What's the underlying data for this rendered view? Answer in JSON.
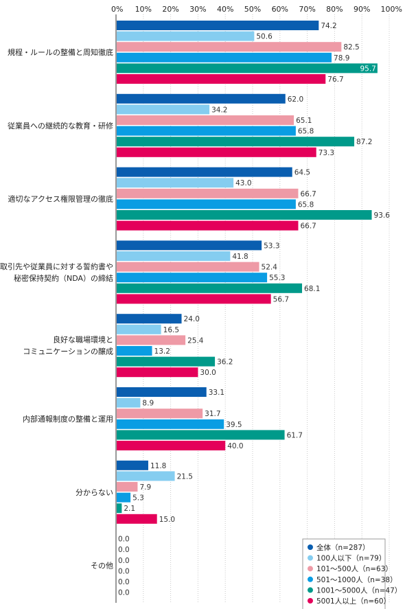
{
  "chart_data": {
    "type": "bar",
    "orientation": "horizontal",
    "xlim": [
      0,
      100
    ],
    "x_ticks": [
      "0%",
      "10%",
      "20%",
      "30%",
      "40%",
      "50%",
      "60%",
      "70%",
      "80%",
      "90%",
      "100%"
    ],
    "grid": "vertical dotted",
    "legend_position": "bottom-right",
    "categories": [
      [
        "規程・ルールの整備と周知徹底"
      ],
      [
        "従業員への継続的な教育・研修"
      ],
      [
        "適切なアクセス権限管理の徹底"
      ],
      [
        "取引先や従業員に対する誓約書や",
        "秘密保持契約（NDA）の締結"
      ],
      [
        "良好な職場環境と",
        "コミュニケーションの醸成"
      ],
      [
        "内部通報制度の整備と運用"
      ],
      [
        "分からない"
      ],
      [
        "その他"
      ]
    ],
    "series": [
      {
        "name": "全体（n=287）",
        "color": "#0a5eb0",
        "values": [
          74.2,
          62.0,
          64.5,
          53.3,
          24.0,
          33.1,
          11.8,
          0.0
        ]
      },
      {
        "name": "100人以下（n=79）",
        "color": "#85cdf0",
        "values": [
          50.6,
          34.2,
          43.0,
          41.8,
          16.5,
          8.9,
          21.5,
          0.0
        ]
      },
      {
        "name": "101～500人（n=63）",
        "color": "#ee9aa6",
        "values": [
          82.5,
          65.1,
          66.7,
          52.4,
          25.4,
          31.7,
          7.9,
          0.0
        ]
      },
      {
        "name": "501～1000人（n=38）",
        "color": "#0a9de3",
        "values": [
          78.9,
          65.8,
          65.8,
          55.3,
          13.2,
          39.5,
          5.3,
          0.0
        ]
      },
      {
        "name": "1001～5000人（n=47）",
        "color": "#009a8a",
        "values": [
          95.7,
          87.2,
          93.6,
          68.1,
          36.2,
          61.7,
          2.1,
          0.0
        ]
      },
      {
        "name": "5001人以上（n=60）",
        "color": "#e4005a",
        "values": [
          76.7,
          73.3,
          66.7,
          56.7,
          30.0,
          40.0,
          15.0,
          0.0
        ]
      }
    ]
  }
}
